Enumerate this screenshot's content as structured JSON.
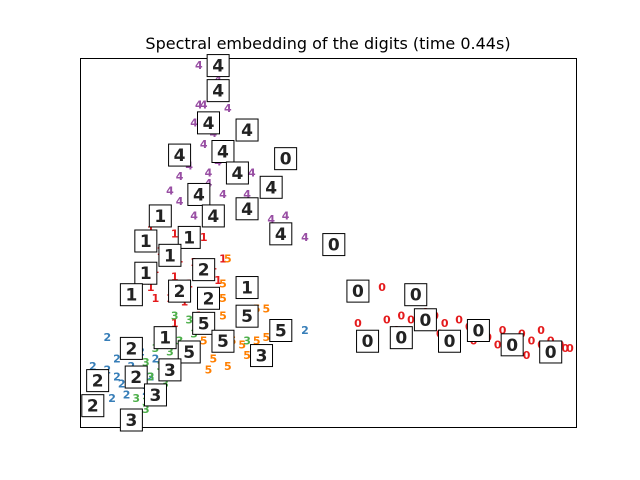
{
  "chart_data": {
    "type": "scatter",
    "title": "Spectral embedding of the digits (time 0.44s)",
    "xlabel": "",
    "ylabel": "",
    "xlim": [
      0,
      1
    ],
    "ylim": [
      0,
      1
    ],
    "axes_visible": false,
    "grid": false,
    "legend": "none",
    "classes": [
      {
        "label": "0",
        "color": "#e41a1c"
      },
      {
        "label": "1",
        "color": "#e41a1c"
      },
      {
        "label": "2",
        "color": "#377eb8"
      },
      {
        "label": "3",
        "color": "#4daf4a"
      },
      {
        "label": "4",
        "color": "#984ea3"
      },
      {
        "label": "5",
        "color": "#ff7f00"
      }
    ],
    "points": [
      {
        "label": "4",
        "x": 0.23,
        "y": 0.99
      },
      {
        "label": "4",
        "x": 0.27,
        "y": 0.95
      },
      {
        "label": "4",
        "x": 0.24,
        "y": 0.88
      },
      {
        "label": "4",
        "x": 0.23,
        "y": 0.88
      },
      {
        "label": "4",
        "x": 0.29,
        "y": 0.87
      },
      {
        "label": "4",
        "x": 0.22,
        "y": 0.83
      },
      {
        "label": "4",
        "x": 0.26,
        "y": 0.8
      },
      {
        "label": "4",
        "x": 0.24,
        "y": 0.77
      },
      {
        "label": "4",
        "x": 0.28,
        "y": 0.77
      },
      {
        "label": "4",
        "x": 0.27,
        "y": 0.72
      },
      {
        "label": "4",
        "x": 0.21,
        "y": 0.71
      },
      {
        "label": "4",
        "x": 0.25,
        "y": 0.69
      },
      {
        "label": "4",
        "x": 0.3,
        "y": 0.69
      },
      {
        "label": "4",
        "x": 0.25,
        "y": 0.66
      },
      {
        "label": "4",
        "x": 0.19,
        "y": 0.68
      },
      {
        "label": "4",
        "x": 0.23,
        "y": 0.63
      },
      {
        "label": "4",
        "x": 0.28,
        "y": 0.63
      },
      {
        "label": "4",
        "x": 0.34,
        "y": 0.69
      },
      {
        "label": "4",
        "x": 0.33,
        "y": 0.63
      },
      {
        "label": "4",
        "x": 0.38,
        "y": 0.56
      },
      {
        "label": "4",
        "x": 0.41,
        "y": 0.57
      },
      {
        "label": "4",
        "x": 0.45,
        "y": 0.51
      },
      {
        "label": "4",
        "x": 0.19,
        "y": 0.61
      },
      {
        "label": "4",
        "x": 0.22,
        "y": 0.57
      },
      {
        "label": "4",
        "x": 0.27,
        "y": 0.59
      },
      {
        "label": "4",
        "x": 0.17,
        "y": 0.64
      },
      {
        "label": "1",
        "x": 0.16,
        "y": 0.56
      },
      {
        "label": "1",
        "x": 0.18,
        "y": 0.52
      },
      {
        "label": "1",
        "x": 0.13,
        "y": 0.53
      },
      {
        "label": "1",
        "x": 0.2,
        "y": 0.49
      },
      {
        "label": "1",
        "x": 0.15,
        "y": 0.47
      },
      {
        "label": "1",
        "x": 0.24,
        "y": 0.51
      },
      {
        "label": "1",
        "x": 0.19,
        "y": 0.45
      },
      {
        "label": "1",
        "x": 0.22,
        "y": 0.44
      },
      {
        "label": "1",
        "x": 0.14,
        "y": 0.42
      },
      {
        "label": "1",
        "x": 0.18,
        "y": 0.4
      },
      {
        "label": "1",
        "x": 0.26,
        "y": 0.43
      },
      {
        "label": "1",
        "x": 0.21,
        "y": 0.38
      },
      {
        "label": "1",
        "x": 0.13,
        "y": 0.37
      },
      {
        "label": "1",
        "x": 0.17,
        "y": 0.34
      },
      {
        "label": "1",
        "x": 0.27,
        "y": 0.39
      },
      {
        "label": "1",
        "x": 0.25,
        "y": 0.35
      },
      {
        "label": "1",
        "x": 0.14,
        "y": 0.34
      },
      {
        "label": "1",
        "x": 0.2,
        "y": 0.33
      },
      {
        "label": "1",
        "x": 0.23,
        "y": 0.29
      },
      {
        "label": "1",
        "x": 0.18,
        "y": 0.27
      },
      {
        "label": "1",
        "x": 0.28,
        "y": 0.45
      },
      {
        "label": "1",
        "x": 0.16,
        "y": 0.23
      },
      {
        "label": "1",
        "x": 0.21,
        "y": 0.2
      },
      {
        "label": "5",
        "x": 0.29,
        "y": 0.45
      },
      {
        "label": "5",
        "x": 0.28,
        "y": 0.38
      },
      {
        "label": "5",
        "x": 0.28,
        "y": 0.34
      },
      {
        "label": "5",
        "x": 0.28,
        "y": 0.29
      },
      {
        "label": "5",
        "x": 0.32,
        "y": 0.27
      },
      {
        "label": "5",
        "x": 0.35,
        "y": 0.31
      },
      {
        "label": "5",
        "x": 0.37,
        "y": 0.31
      },
      {
        "label": "5",
        "x": 0.3,
        "y": 0.22
      },
      {
        "label": "5",
        "x": 0.32,
        "y": 0.21
      },
      {
        "label": "5",
        "x": 0.35,
        "y": 0.22
      },
      {
        "label": "5",
        "x": 0.37,
        "y": 0.23
      },
      {
        "label": "5",
        "x": 0.26,
        "y": 0.17
      },
      {
        "label": "5",
        "x": 0.24,
        "y": 0.22
      },
      {
        "label": "5",
        "x": 0.33,
        "y": 0.18
      },
      {
        "label": "5",
        "x": 0.29,
        "y": 0.15
      },
      {
        "label": "5",
        "x": 0.25,
        "y": 0.14
      },
      {
        "label": "2",
        "x": 0.04,
        "y": 0.23
      },
      {
        "label": "2",
        "x": 0.01,
        "y": 0.15
      },
      {
        "label": "2",
        "x": 0.02,
        "y": 0.13
      },
      {
        "label": "2",
        "x": 0.04,
        "y": 0.14
      },
      {
        "label": "2",
        "x": 0.06,
        "y": 0.17
      },
      {
        "label": "2",
        "x": 0.09,
        "y": 0.15
      },
      {
        "label": "2",
        "x": 0.11,
        "y": 0.19
      },
      {
        "label": "2",
        "x": 0.14,
        "y": 0.17
      },
      {
        "label": "2",
        "x": 0.03,
        "y": 0.1
      },
      {
        "label": "2",
        "x": 0.07,
        "y": 0.1
      },
      {
        "label": "2",
        "x": 0.09,
        "y": 0.11
      },
      {
        "label": "2",
        "x": 0.11,
        "y": 0.13
      },
      {
        "label": "2",
        "x": 0.05,
        "y": 0.06
      },
      {
        "label": "2",
        "x": 0.08,
        "y": 0.07
      },
      {
        "label": "2",
        "x": 0.12,
        "y": 0.08
      },
      {
        "label": "2",
        "x": 0.45,
        "y": 0.25
      },
      {
        "label": "2",
        "x": 0.06,
        "y": 0.12
      },
      {
        "label": "2",
        "x": 0.13,
        "y": 0.12
      },
      {
        "label": "3",
        "x": 0.18,
        "y": 0.29
      },
      {
        "label": "3",
        "x": 0.21,
        "y": 0.28
      },
      {
        "label": "3",
        "x": 0.16,
        "y": 0.24
      },
      {
        "label": "3",
        "x": 0.19,
        "y": 0.22
      },
      {
        "label": "3",
        "x": 0.22,
        "y": 0.24
      },
      {
        "label": "3",
        "x": 0.14,
        "y": 0.2
      },
      {
        "label": "3",
        "x": 0.17,
        "y": 0.19
      },
      {
        "label": "3",
        "x": 0.21,
        "y": 0.18
      },
      {
        "label": "3",
        "x": 0.12,
        "y": 0.16
      },
      {
        "label": "3",
        "x": 0.15,
        "y": 0.15
      },
      {
        "label": "3",
        "x": 0.18,
        "y": 0.14
      },
      {
        "label": "3",
        "x": 0.13,
        "y": 0.12
      },
      {
        "label": "3",
        "x": 0.16,
        "y": 0.1
      },
      {
        "label": "3",
        "x": 0.1,
        "y": 0.06
      },
      {
        "label": "3",
        "x": 0.12,
        "y": 0.05
      },
      {
        "label": "3",
        "x": 0.14,
        "y": 0.07
      },
      {
        "label": "3",
        "x": 0.12,
        "y": 0.03
      },
      {
        "label": "3",
        "x": 0.33,
        "y": 0.22
      },
      {
        "label": "0",
        "x": 0.61,
        "y": 0.37
      },
      {
        "label": "0",
        "x": 0.56,
        "y": 0.27
      },
      {
        "label": "0",
        "x": 0.62,
        "y": 0.28
      },
      {
        "label": "0",
        "x": 0.65,
        "y": 0.29
      },
      {
        "label": "0",
        "x": 0.67,
        "y": 0.28
      },
      {
        "label": "0",
        "x": 0.7,
        "y": 0.3
      },
      {
        "label": "0",
        "x": 0.72,
        "y": 0.29
      },
      {
        "label": "0",
        "x": 0.69,
        "y": 0.26
      },
      {
        "label": "0",
        "x": 0.74,
        "y": 0.27
      },
      {
        "label": "0",
        "x": 0.77,
        "y": 0.28
      },
      {
        "label": "0",
        "x": 0.79,
        "y": 0.26
      },
      {
        "label": "0",
        "x": 0.73,
        "y": 0.24
      },
      {
        "label": "0",
        "x": 0.76,
        "y": 0.23
      },
      {
        "label": "0",
        "x": 0.81,
        "y": 0.25
      },
      {
        "label": "0",
        "x": 0.83,
        "y": 0.23
      },
      {
        "label": "0",
        "x": 0.86,
        "y": 0.25
      },
      {
        "label": "0",
        "x": 0.8,
        "y": 0.22
      },
      {
        "label": "0",
        "x": 0.85,
        "y": 0.21
      },
      {
        "label": "0",
        "x": 0.88,
        "y": 0.22
      },
      {
        "label": "0",
        "x": 0.9,
        "y": 0.24
      },
      {
        "label": "0",
        "x": 0.92,
        "y": 0.22
      },
      {
        "label": "0",
        "x": 0.88,
        "y": 0.2
      },
      {
        "label": "0",
        "x": 0.94,
        "y": 0.21
      },
      {
        "label": "0",
        "x": 0.96,
        "y": 0.22
      },
      {
        "label": "0",
        "x": 0.97,
        "y": 0.2
      },
      {
        "label": "0",
        "x": 0.91,
        "y": 0.18
      },
      {
        "label": "0",
        "x": 0.99,
        "y": 0.2
      },
      {
        "label": "0",
        "x": 1.0,
        "y": 0.2
      },
      {
        "label": "0",
        "x": 0.98,
        "y": 0.21
      },
      {
        "label": "0",
        "x": 0.64,
        "y": 0.25
      },
      {
        "label": "0",
        "x": 0.75,
        "y": 0.2
      },
      {
        "label": "0",
        "x": 0.94,
        "y": 0.25
      }
    ],
    "thumbnails": [
      {
        "digit": "4",
        "x": 0.27,
        "y": 0.99
      },
      {
        "digit": "4",
        "x": 0.27,
        "y": 0.92
      },
      {
        "digit": "4",
        "x": 0.25,
        "y": 0.83
      },
      {
        "digit": "4",
        "x": 0.33,
        "y": 0.81
      },
      {
        "digit": "4",
        "x": 0.19,
        "y": 0.74
      },
      {
        "digit": "4",
        "x": 0.28,
        "y": 0.75
      },
      {
        "digit": "4",
        "x": 0.31,
        "y": 0.69
      },
      {
        "digit": "0",
        "x": 0.41,
        "y": 0.73
      },
      {
        "digit": "4",
        "x": 0.38,
        "y": 0.65
      },
      {
        "digit": "4",
        "x": 0.23,
        "y": 0.63
      },
      {
        "digit": "4",
        "x": 0.33,
        "y": 0.59
      },
      {
        "digit": "4",
        "x": 0.26,
        "y": 0.57
      },
      {
        "digit": "1",
        "x": 0.15,
        "y": 0.57
      },
      {
        "digit": "4",
        "x": 0.4,
        "y": 0.52
      },
      {
        "digit": "1",
        "x": 0.21,
        "y": 0.51
      },
      {
        "digit": "1",
        "x": 0.12,
        "y": 0.5
      },
      {
        "digit": "0",
        "x": 0.51,
        "y": 0.49
      },
      {
        "digit": "1",
        "x": 0.17,
        "y": 0.46
      },
      {
        "digit": "2",
        "x": 0.24,
        "y": 0.42
      },
      {
        "digit": "1",
        "x": 0.12,
        "y": 0.41
      },
      {
        "digit": "1",
        "x": 0.33,
        "y": 0.37
      },
      {
        "digit": "2",
        "x": 0.19,
        "y": 0.36
      },
      {
        "digit": "1",
        "x": 0.09,
        "y": 0.35
      },
      {
        "digit": "2",
        "x": 0.25,
        "y": 0.34
      },
      {
        "digit": "0",
        "x": 0.56,
        "y": 0.36
      },
      {
        "digit": "0",
        "x": 0.68,
        "y": 0.35
      },
      {
        "digit": "5",
        "x": 0.33,
        "y": 0.29
      },
      {
        "digit": "5",
        "x": 0.24,
        "y": 0.27
      },
      {
        "digit": "5",
        "x": 0.4,
        "y": 0.25
      },
      {
        "digit": "0",
        "x": 0.7,
        "y": 0.28
      },
      {
        "digit": "0",
        "x": 0.81,
        "y": 0.25
      },
      {
        "digit": "1",
        "x": 0.16,
        "y": 0.23
      },
      {
        "digit": "5",
        "x": 0.28,
        "y": 0.22
      },
      {
        "digit": "0",
        "x": 0.58,
        "y": 0.22
      },
      {
        "digit": "0",
        "x": 0.65,
        "y": 0.23
      },
      {
        "digit": "0",
        "x": 0.75,
        "y": 0.22
      },
      {
        "digit": "0",
        "x": 0.88,
        "y": 0.21
      },
      {
        "digit": "2",
        "x": 0.09,
        "y": 0.2
      },
      {
        "digit": "5",
        "x": 0.21,
        "y": 0.19
      },
      {
        "digit": "0",
        "x": 0.96,
        "y": 0.19
      },
      {
        "digit": "3",
        "x": 0.36,
        "y": 0.18
      },
      {
        "digit": "2",
        "x": 0.1,
        "y": 0.12
      },
      {
        "digit": "3",
        "x": 0.17,
        "y": 0.14
      },
      {
        "digit": "2",
        "x": 0.02,
        "y": 0.11
      },
      {
        "digit": "3",
        "x": 0.14,
        "y": 0.07
      },
      {
        "digit": "2",
        "x": 0.01,
        "y": 0.04
      },
      {
        "digit": "3",
        "x": 0.09,
        "y": 0.0
      }
    ]
  }
}
